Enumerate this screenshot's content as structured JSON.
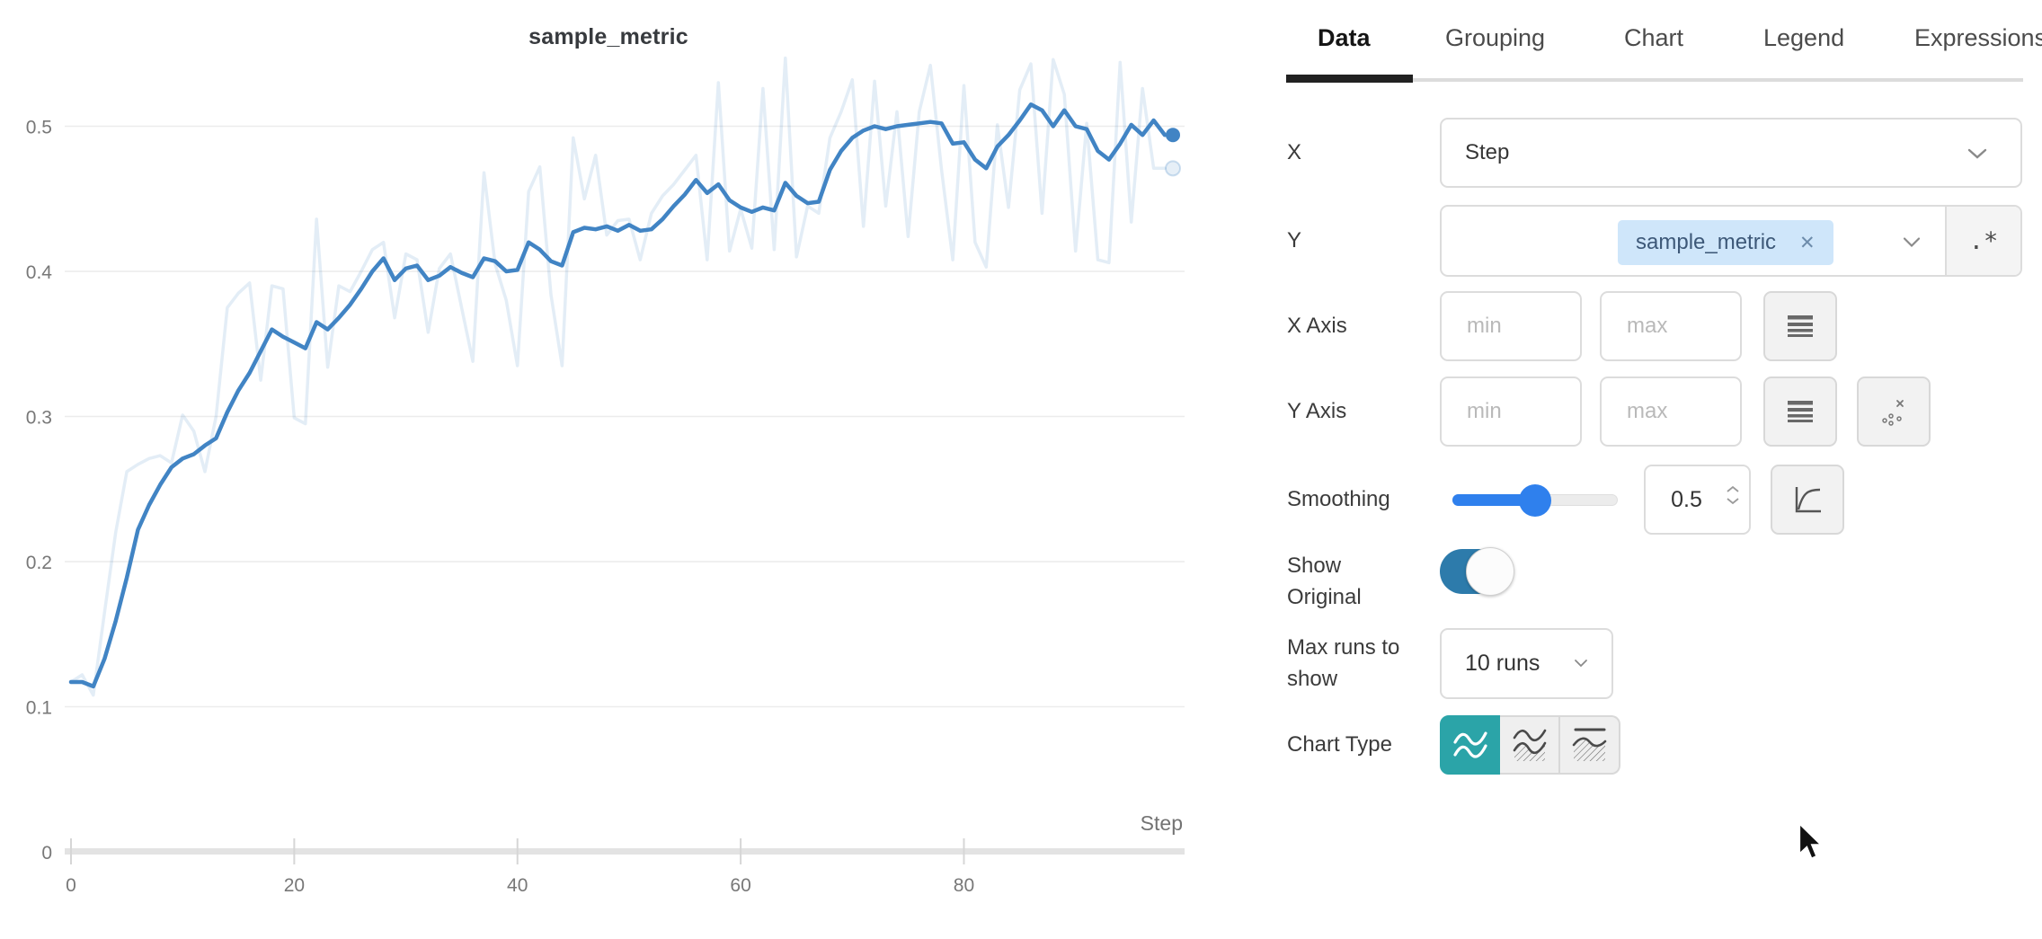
{
  "chart": {
    "title": "sample_metric",
    "xlabel": "Step"
  },
  "chart_data": {
    "type": "line",
    "title": "sample_metric",
    "xlabel": "Step",
    "ylabel": "",
    "x_ticks": [
      0,
      20,
      40,
      60,
      80
    ],
    "y_ticks": [
      0,
      0.1,
      0.2,
      0.3,
      0.4,
      0.5
    ],
    "xlim": [
      0,
      98
    ],
    "ylim": [
      0,
      0.55
    ],
    "grid": "horizontal",
    "legend_position": "none",
    "series": [
      {
        "name": "sample_metric (original)",
        "color": "#4184c4",
        "opacity": 0.15,
        "width": 3.5,
        "values": [
          0.117,
          0.122,
          0.108,
          0.165,
          0.22,
          0.262,
          0.267,
          0.271,
          0.273,
          0.268,
          0.301,
          0.29,
          0.262,
          0.3,
          0.375,
          0.385,
          0.392,
          0.325,
          0.39,
          0.388,
          0.299,
          0.295,
          0.436,
          0.334,
          0.39,
          0.386,
          0.4,
          0.415,
          0.42,
          0.368,
          0.412,
          0.408,
          0.358,
          0.402,
          0.412,
          0.375,
          0.338,
          0.468,
          0.405,
          0.38,
          0.335,
          0.455,
          0.472,
          0.384,
          0.335,
          0.492,
          0.45,
          0.48,
          0.425,
          0.435,
          0.436,
          0.408,
          0.44,
          0.452,
          0.46,
          0.47,
          0.48,
          0.408,
          0.53,
          0.414,
          0.443,
          0.416,
          0.526,
          0.415,
          0.547,
          0.41,
          0.445,
          0.44,
          0.492,
          0.51,
          0.532,
          0.431,
          0.531,
          0.445,
          0.51,
          0.424,
          0.51,
          0.542,
          0.47,
          0.408,
          0.528,
          0.42,
          0.403,
          0.501,
          0.444,
          0.525,
          0.543,
          0.44,
          0.546,
          0.522,
          0.414,
          0.502,
          0.408,
          0.406,
          0.544,
          0.434,
          0.526,
          0.471,
          0.471
        ]
      },
      {
        "name": "sample_metric (smoothed 0.5)",
        "color": "#4184c4",
        "opacity": 1,
        "width": 4.5,
        "values": [
          0.117,
          0.117,
          0.114,
          0.133,
          0.159,
          0.189,
          0.222,
          0.239,
          0.253,
          0.265,
          0.271,
          0.274,
          0.28,
          0.285,
          0.303,
          0.318,
          0.33,
          0.345,
          0.36,
          0.355,
          0.351,
          0.347,
          0.365,
          0.36,
          0.368,
          0.377,
          0.388,
          0.4,
          0.409,
          0.394,
          0.402,
          0.404,
          0.394,
          0.397,
          0.403,
          0.399,
          0.396,
          0.409,
          0.407,
          0.4,
          0.401,
          0.42,
          0.415,
          0.407,
          0.404,
          0.427,
          0.43,
          0.429,
          0.431,
          0.428,
          0.432,
          0.428,
          0.429,
          0.436,
          0.445,
          0.453,
          0.463,
          0.454,
          0.46,
          0.449,
          0.444,
          0.441,
          0.444,
          0.442,
          0.461,
          0.452,
          0.447,
          0.448,
          0.47,
          0.483,
          0.492,
          0.497,
          0.5,
          0.498,
          0.5,
          0.501,
          0.502,
          0.503,
          0.502,
          0.488,
          0.489,
          0.477,
          0.471,
          0.486,
          0.494,
          0.504,
          0.515,
          0.511,
          0.5,
          0.511,
          0.5,
          0.498,
          0.483,
          0.477,
          0.488,
          0.501,
          0.494,
          0.504,
          0.494
        ]
      }
    ]
  },
  "panel": {
    "tabs": [
      {
        "label": "Data"
      },
      {
        "label": "Grouping"
      },
      {
        "label": "Chart"
      },
      {
        "label": "Legend"
      },
      {
        "label": "Expressions"
      }
    ],
    "active_tab": "Data",
    "x_row": {
      "label": "X",
      "value": "Step"
    },
    "y_row": {
      "label": "Y",
      "tag": "sample_metric",
      "remove_icon": "✕",
      "regex": ".*"
    },
    "x_axis_row": {
      "label": "X Axis",
      "min_placeholder": "min",
      "max_placeholder": "max"
    },
    "y_axis_row": {
      "label": "Y Axis",
      "min_placeholder": "min",
      "max_placeholder": "max"
    },
    "smoothing_row": {
      "label": "Smoothing",
      "value": "0.5",
      "fraction": 0.5
    },
    "show_original_row": {
      "label": "Show Original",
      "enabled": true
    },
    "max_runs_row": {
      "label": "Max runs to show",
      "value": "10 runs"
    },
    "chart_type_row": {
      "label": "Chart Type",
      "selected": "line-plot"
    },
    "colors": {
      "accent_teal": "#2ba4a8",
      "toggle_blue": "#2d7bab",
      "slider_blue": "#2f80ed",
      "line_blue": "#4184c4",
      "tag_bg": "#cfe6fa"
    }
  }
}
